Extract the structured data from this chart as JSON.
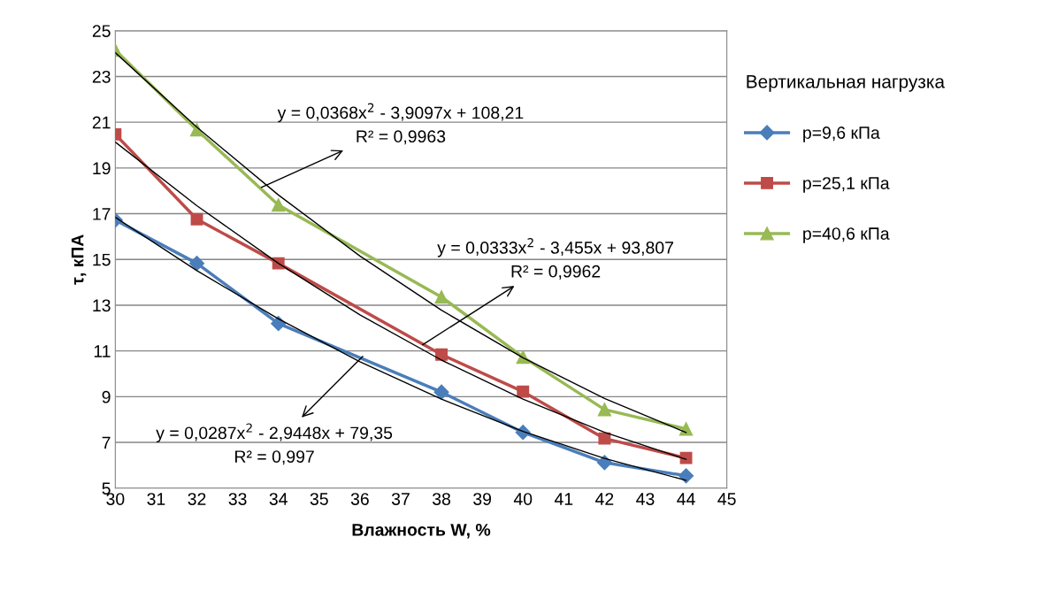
{
  "chart_data": {
    "type": "line",
    "xlabel": "Влажность W, %",
    "ylabel": "τ, кПА",
    "xlim": [
      30,
      45
    ],
    "xticks": [
      30,
      31,
      32,
      33,
      34,
      35,
      36,
      37,
      38,
      39,
      40,
      41,
      42,
      43,
      44,
      45
    ],
    "ylim": [
      5,
      25
    ],
    "yticks": [
      5,
      7,
      9,
      11,
      13,
      15,
      17,
      19,
      21,
      23,
      25
    ],
    "grid": "y",
    "legend": "right",
    "legend_title": "Вертикальная нагрузка",
    "series": [
      {
        "name": "p=9,6 кПа",
        "color": "#4a7ebb",
        "marker": "diamond",
        "x": [
          30,
          32,
          34,
          38,
          40,
          42,
          44
        ],
        "values": [
          16.72,
          14.83,
          12.2,
          9.2,
          7.44,
          6.12,
          5.54
        ]
      },
      {
        "name": "p=25,1 кПа",
        "color": "#be4b48",
        "marker": "square",
        "x": [
          30,
          32,
          34,
          38,
          40,
          42,
          44
        ],
        "values": [
          20.47,
          16.76,
          14.83,
          10.84,
          9.22,
          7.17,
          6.32
        ]
      },
      {
        "name": "p=40,6 кПа",
        "color": "#98b954",
        "marker": "triangle",
        "x": [
          30,
          32,
          34,
          38,
          40,
          42,
          44
        ],
        "values": [
          24.15,
          20.67,
          17.38,
          13.36,
          10.73,
          8.44,
          7.59
        ]
      },
      {
        "color": "#000000",
        "marker": "none",
        "x": [
          30,
          32,
          34,
          36,
          38,
          40,
          42,
          44
        ],
        "values": [
          16.84,
          14.51,
          12.4,
          10.53,
          8.89,
          7.48,
          6.3,
          5.34
        ]
      },
      {
        "color": "#000000",
        "marker": "none",
        "x": [
          30,
          32,
          34,
          36,
          38,
          40,
          42,
          44
        ],
        "values": [
          20.13,
          17.35,
          14.83,
          12.58,
          10.6,
          8.89,
          7.44,
          6.26
        ]
      },
      {
        "color": "#000000",
        "marker": "none",
        "x": [
          30,
          32,
          34,
          36,
          38,
          40,
          42,
          44
        ],
        "values": [
          24.04,
          20.78,
          17.82,
          15.15,
          12.78,
          10.7,
          8.92,
          7.43
        ]
      }
    ],
    "annotations": [
      {
        "text": "y = 0,0287x$^{2}$ - 2,9448x + 79,35\nR² = 0,997",
        "x": 36.07,
        "y": 10.76
      },
      {
        "text": "y = 0,0333x$^{2}$ - 3,455x + 93,807\nR² = 0,9962",
        "x": 37.54,
        "y": 11.27
      },
      {
        "text": "y = 0,0368x$^{2}$ - 3,9097x + 108,21\nR² = 0,9963",
        "x": 33.58,
        "y": 18.15
      }
    ]
  }
}
